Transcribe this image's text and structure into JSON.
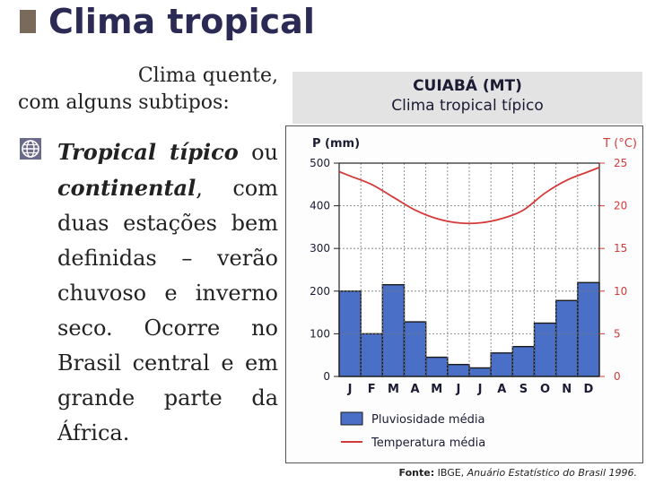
{
  "heading": {
    "title": "Clima tropical"
  },
  "intro": {
    "line1": "Clima quente,",
    "line2": "com alguns subtipos:"
  },
  "bullet": {
    "term1": "Tropical típico",
    "connector": " ou ",
    "term2": "continental",
    "rest": ", com duas estações bem definidas – verão chuvoso e inverno seco. Ocorre no Brasil central e em grande parte da África."
  },
  "source": {
    "label": "Fonte:",
    "org": " IBGE, ",
    "publication": "Anuário Estatístico do Brasil 1996."
  },
  "chart_data": {
    "type": "bar",
    "title": "CUIABÁ (MT)",
    "subtitle": "Clima tropical típico",
    "categories": [
      "J",
      "F",
      "M",
      "A",
      "M",
      "J",
      "J",
      "A",
      "S",
      "O",
      "N",
      "D"
    ],
    "ylabel_left": "P (mm)",
    "ylabel_right": "T (°C)",
    "ylim_left": [
      0,
      500
    ],
    "ylim_right": [
      0,
      25
    ],
    "yticks_left": [
      "0",
      "100",
      "200",
      "300",
      "400",
      "500"
    ],
    "yticks_right": [
      "0",
      "5",
      "10",
      "15",
      "20",
      "25"
    ],
    "grid": true,
    "series": [
      {
        "name": "Pluviosidade média",
        "type": "bar",
        "axis": "left",
        "color": "#4a6fc7",
        "values": [
          200,
          100,
          215,
          128,
          45,
          28,
          20,
          55,
          70,
          125,
          178,
          220
        ]
      },
      {
        "name": "Temperatura média",
        "type": "line",
        "axis": "right",
        "color": "#d43a3a",
        "values": [
          23.5,
          22.5,
          21.0,
          19.5,
          18.5,
          18.0,
          18.0,
          18.5,
          19.5,
          21.5,
          23.0,
          24.0
        ]
      }
    ]
  }
}
